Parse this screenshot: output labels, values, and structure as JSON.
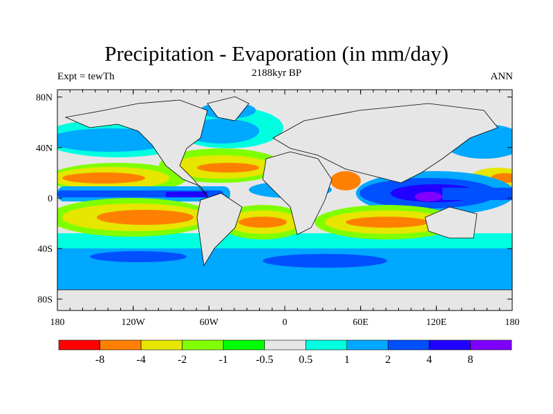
{
  "chart_data": {
    "type": "heatmap",
    "title": "Precipitation - Evaporation (in mm/day)",
    "center_string": "2188kyr BP",
    "left_string": "Expt = tewTh",
    "right_string": "ANN",
    "x_ticks": [
      "180",
      "120W",
      "60W",
      "0",
      "60E",
      "120E",
      "180"
    ],
    "x_tick_values": [
      -180,
      -120,
      -60,
      0,
      60,
      120,
      180
    ],
    "y_ticks": [
      "80N",
      "40N",
      "0",
      "40S",
      "80S"
    ],
    "y_tick_values": [
      80,
      40,
      0,
      -40,
      -80
    ],
    "colorbar": {
      "levels": [
        "-8",
        "-4",
        "-2",
        "-1",
        "-0.5",
        "0.5",
        "1",
        "2",
        "4",
        "8"
      ],
      "colors": [
        "#ff0000",
        "#ff8000",
        "#e6e600",
        "#80ff00",
        "#00ff00",
        "#e6e6e6",
        "#00ffe0",
        "#00a8ff",
        "#0050ff",
        "#2000ff",
        "#8000ff"
      ]
    }
  }
}
